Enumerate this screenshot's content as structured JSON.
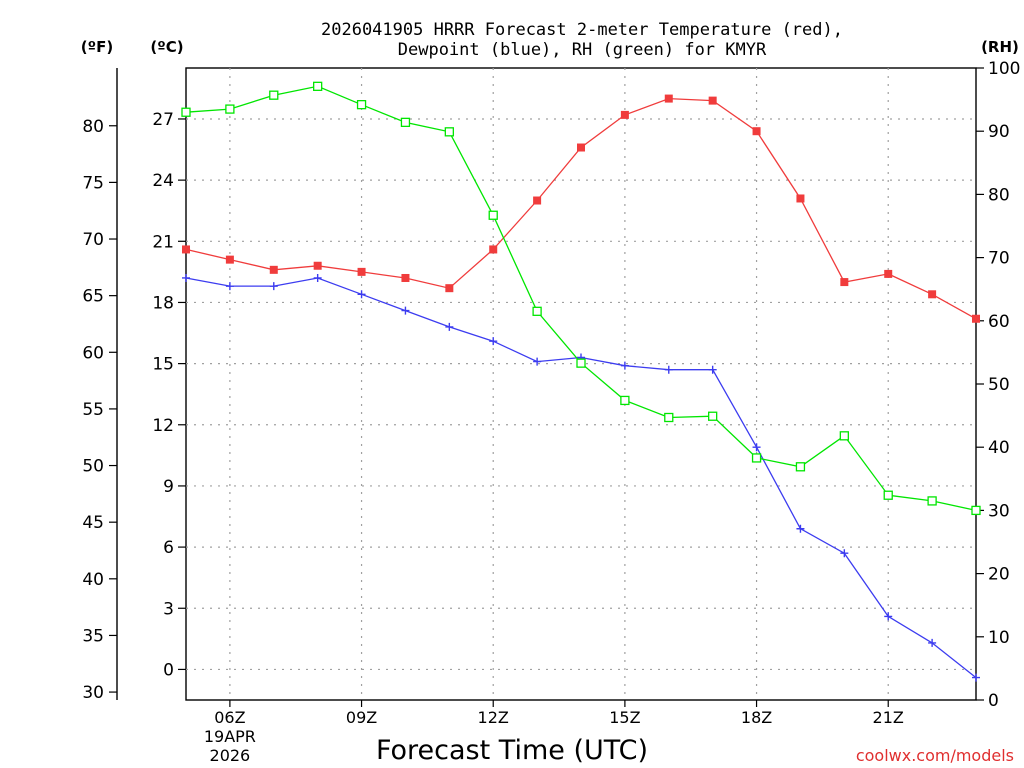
{
  "chart_data": {
    "type": "line",
    "title_line1": "2026041905 HRRR Forecast 2-meter Temperature (red),",
    "title_line2": "Dewpoint (blue), RH (green) for KMYR",
    "xlabel": "Forecast Time (UTC)",
    "watermark": "coolwx.com/models",
    "left_outer_axis": {
      "label": "(ºF)",
      "ticks": [
        "80",
        "75",
        "70",
        "65",
        "60",
        "55",
        "50",
        "45",
        "40",
        "35",
        "30"
      ],
      "tick_values": [
        80,
        75,
        70,
        65,
        60,
        55,
        50,
        45,
        40,
        35,
        30
      ]
    },
    "left_inner_axis": {
      "label": "(ºC)",
      "ticks": [
        "27",
        "24",
        "21",
        "18",
        "15",
        "12",
        "9",
        "6",
        "3",
        "0"
      ],
      "tick_values": [
        27,
        24,
        21,
        18,
        15,
        12,
        9,
        6,
        3,
        0
      ],
      "ylim": [
        -1.5,
        29.5
      ]
    },
    "right_axis": {
      "label": "(RH)",
      "ticks": [
        "100",
        "90",
        "80",
        "70",
        "60",
        "50",
        "40",
        "30",
        "20",
        "10",
        "0"
      ],
      "tick_values": [
        100,
        90,
        80,
        70,
        60,
        50,
        40,
        30,
        20,
        10,
        0
      ],
      "ylim": [
        0,
        100
      ]
    },
    "x_ticks": [
      {
        "label": "06Z",
        "hour": 6,
        "sub1": "19APR",
        "sub2": "2026"
      },
      {
        "label": "09Z",
        "hour": 9
      },
      {
        "label": "12Z",
        "hour": 12
      },
      {
        "label": "15Z",
        "hour": 15
      },
      {
        "label": "18Z",
        "hour": 18
      },
      {
        "label": "21Z",
        "hour": 21
      }
    ],
    "xlim": [
      5,
      23
    ],
    "x": [
      5,
      6,
      7,
      8,
      9,
      10,
      11,
      12,
      13,
      14,
      15,
      16,
      17,
      18,
      19,
      20,
      21,
      22,
      23
    ],
    "series": [
      {
        "name": "Temperature",
        "unit": "C",
        "color": "#f03c3c",
        "marker": "filled-square",
        "values": [
          20.6,
          20.1,
          19.6,
          19.8,
          19.5,
          19.2,
          18.7,
          20.6,
          23.0,
          25.6,
          27.2,
          28.0,
          27.9,
          26.4,
          23.1,
          19.0,
          19.4,
          18.4,
          17.2
        ]
      },
      {
        "name": "Dewpoint",
        "unit": "C",
        "color": "#3c3cf0",
        "marker": "plus",
        "values": [
          19.2,
          18.8,
          18.8,
          19.2,
          18.4,
          17.6,
          16.8,
          16.1,
          15.1,
          15.3,
          14.9,
          14.7,
          14.7,
          10.9,
          6.9,
          5.7,
          2.6,
          1.3,
          -0.4
        ]
      },
      {
        "name": "RH",
        "unit": "%",
        "color": "#00e600",
        "marker": "open-square",
        "values": [
          93.0,
          93.5,
          95.7,
          97.1,
          94.2,
          91.4,
          89.9,
          76.7,
          61.5,
          53.3,
          47.4,
          44.7,
          44.9,
          38.3,
          36.9,
          41.8,
          32.4,
          31.5,
          30.0
        ]
      }
    ]
  }
}
